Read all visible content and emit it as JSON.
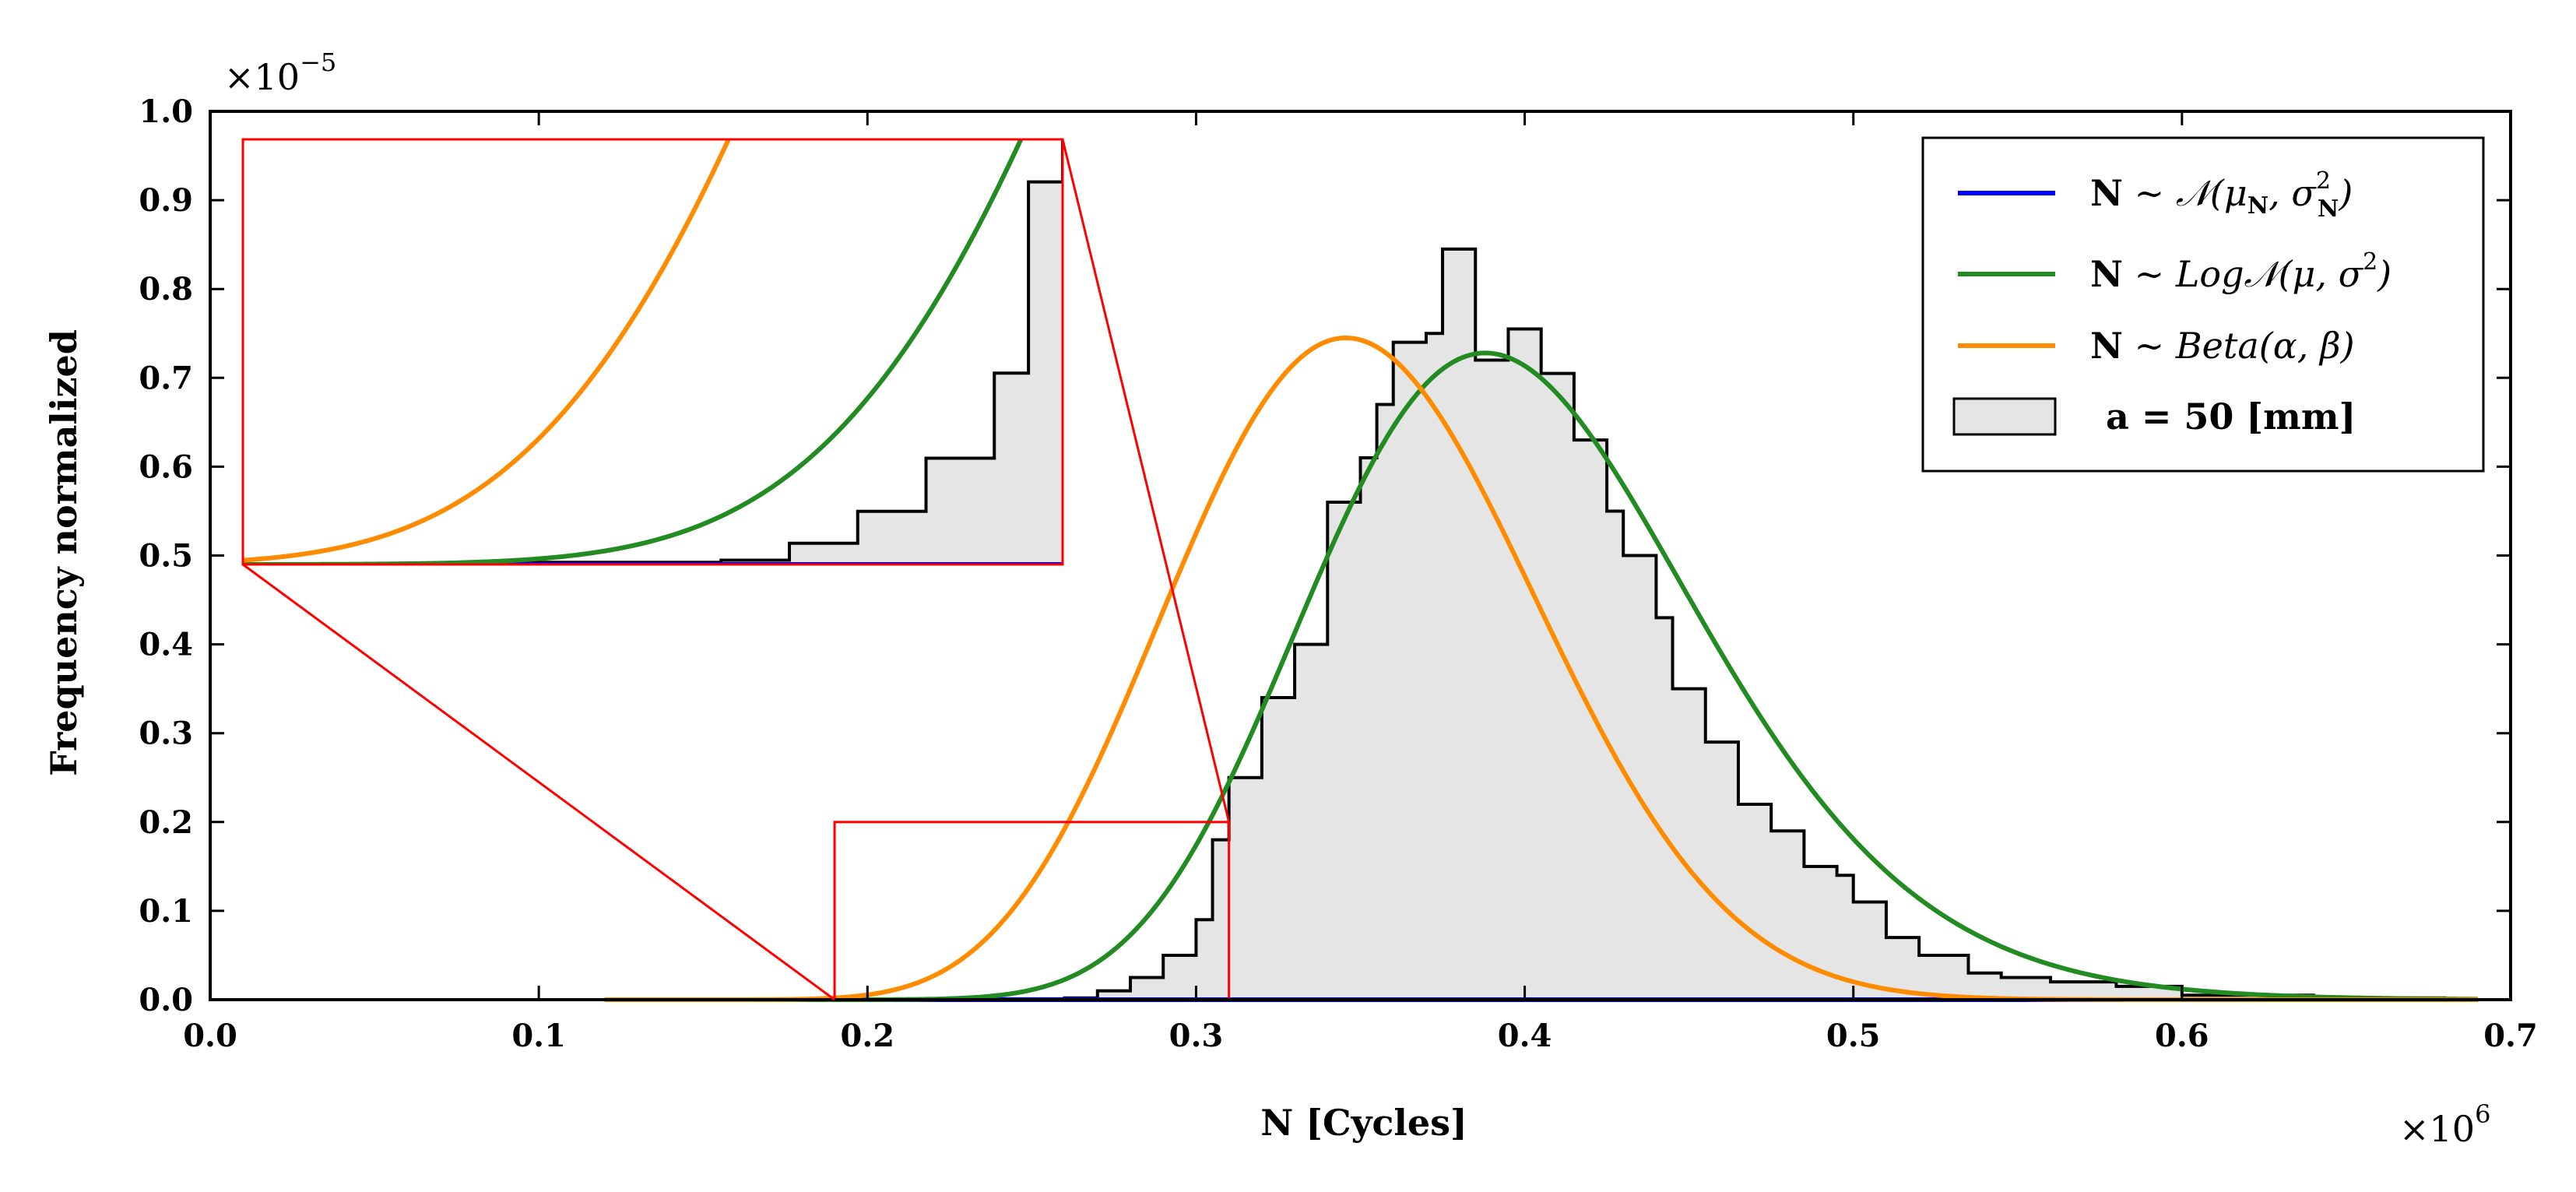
{
  "chart_data": {
    "type": "histogram",
    "xlabel": "N [Cycles]",
    "ylabel": "Frequency normalized",
    "x_multiplier": "×10",
    "x_multiplier_exp": "6",
    "y_multiplier": "×10",
    "y_multiplier_exp": "−5",
    "xlim": [
      0.0,
      0.7
    ],
    "ylim": [
      0.0,
      1.0
    ],
    "xticks": [
      "0.0",
      "0.1",
      "0.2",
      "0.3",
      "0.4",
      "0.5",
      "0.6",
      "0.7"
    ],
    "yticks": [
      "0.0",
      "0.1",
      "0.2",
      "0.3",
      "0.4",
      "0.5",
      "0.6",
      "0.7",
      "0.8",
      "0.9",
      "1.0"
    ],
    "histogram": {
      "label": "a = 50 [mm]",
      "bin_width": 0.01,
      "bin_starts": [
        0.15,
        0.16,
        0.17,
        0.18,
        0.19,
        0.2,
        0.21,
        0.22,
        0.23,
        0.24,
        0.25,
        0.26,
        0.27,
        0.28,
        0.29,
        0.3,
        0.31,
        0.32,
        0.33,
        0.34,
        0.35,
        0.36,
        0.37,
        0.38,
        0.39,
        0.4,
        0.41,
        0.42,
        0.43,
        0.44,
        0.45,
        0.46,
        0.47,
        0.48,
        0.49,
        0.5,
        0.51,
        0.52,
        0.53,
        0.54,
        0.55,
        0.56,
        0.57,
        0.58,
        0.59,
        0.6,
        0.61,
        0.62,
        0.63,
        0.64,
        0.65,
        0.66,
        0.67,
        0.68
      ],
      "values": [
        0.0,
        0.0,
        0.0,
        0.0,
        0.0,
        0.0,
        0.0,
        0.0,
        0.0,
        0.0,
        0.0,
        0.0,
        0.0,
        0.0,
        0.0,
        0.0,
        0.0,
        0.0,
        0.0,
        0.0,
        0.0,
        0.0,
        0.0,
        0.0,
        0.0,
        0.0,
        0.0,
        0.0,
        0.0,
        0.0,
        0.0,
        0.0,
        0.0,
        0.0,
        0.0,
        0.0,
        0.0,
        0.0,
        0.0,
        0.0,
        0.0,
        0.0,
        0.0,
        0.0,
        0.0,
        0.0,
        0.0,
        0.0,
        0.0,
        0.0,
        0.0,
        0.0,
        0.0,
        0.0
      ]
    },
    "hist_bins": [
      [
        0.19,
        0.0
      ],
      [
        0.2,
        0.0
      ],
      [
        0.21,
        0.0
      ],
      [
        0.22,
        0.0
      ],
      [
        0.23,
        0.001
      ],
      [
        0.24,
        0.001
      ],
      [
        0.25,
        0.001
      ],
      [
        0.26,
        0.002
      ],
      [
        0.27,
        0.01
      ],
      [
        0.28,
        0.025
      ],
      [
        0.29,
        0.05
      ],
      [
        0.3,
        0.09
      ],
      [
        0.305,
        0.18
      ],
      [
        0.31,
        0.25
      ],
      [
        0.32,
        0.34
      ],
      [
        0.33,
        0.4
      ],
      [
        0.34,
        0.56
      ],
      [
        0.35,
        0.61
      ],
      [
        0.355,
        0.67
      ],
      [
        0.36,
        0.74
      ],
      [
        0.37,
        0.75
      ],
      [
        0.375,
        0.845
      ],
      [
        0.385,
        0.72
      ],
      [
        0.395,
        0.755
      ],
      [
        0.405,
        0.705
      ],
      [
        0.415,
        0.63
      ],
      [
        0.425,
        0.55
      ],
      [
        0.43,
        0.5
      ],
      [
        0.44,
        0.43
      ],
      [
        0.445,
        0.35
      ],
      [
        0.455,
        0.29
      ],
      [
        0.465,
        0.22
      ],
      [
        0.475,
        0.19
      ],
      [
        0.485,
        0.15
      ],
      [
        0.495,
        0.14
      ],
      [
        0.5,
        0.11
      ],
      [
        0.51,
        0.07
      ],
      [
        0.52,
        0.05
      ],
      [
        0.535,
        0.03
      ],
      [
        0.545,
        0.025
      ],
      [
        0.56,
        0.02
      ],
      [
        0.58,
        0.015
      ],
      [
        0.6,
        0.005
      ],
      [
        0.64,
        0.002
      ],
      [
        0.68,
        0.0
      ]
    ],
    "series": [
      {
        "name": "N ~ 𝒩(μN, σN²)",
        "color": "#0000ff",
        "dist": "normal",
        "mu": 0.398,
        "sigma": 0.0565
      },
      {
        "name": "N ~ Log𝒩(μ, σ²)",
        "color": "#228b22",
        "dist": "lognormal",
        "mode": 0.388,
        "peak": 0.728
      },
      {
        "name": "N ~ Beta(α, β)",
        "color": "#ff8c00",
        "dist": "beta",
        "mode": 0.381,
        "peak": 0.745
      }
    ],
    "legend": {
      "entries": [
        {
          "main": "N",
          "rest": " ~ 𝒩(μ",
          "sub": "N",
          "mid": ", σ",
          "sup": "2",
          "sub2": "N",
          "end": ")"
        },
        {
          "main": "N",
          "rest": " ~ Log𝒩(μ, σ",
          "sup": "2",
          "end": ")"
        },
        {
          "main": "N",
          "rest": " ~ Beta(α, β)"
        },
        {
          "hist": "a = 50 [mm]"
        }
      ],
      "position": "top-right"
    },
    "zoom_region": {
      "x": [
        0.19,
        0.31
      ],
      "y": [
        0.0,
        0.2
      ]
    },
    "inset_position": "top-left",
    "colors": {
      "hist_fill": "#e5e5e5",
      "hist_edge": "#000000",
      "zoom": "#ff0000"
    }
  }
}
